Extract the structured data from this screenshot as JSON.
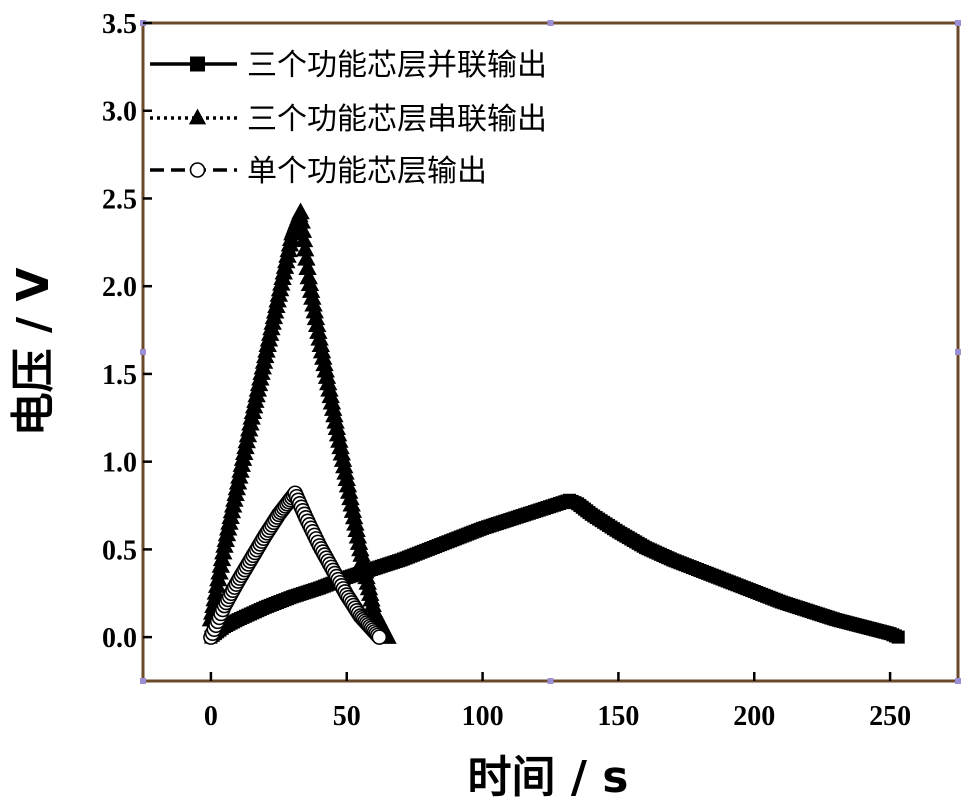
{
  "chart_data": {
    "type": "line",
    "xlabel": "时间 / s",
    "ylabel": "电压 / V",
    "xlim": [
      -25,
      275
    ],
    "ylim": [
      -0.25,
      3.5
    ],
    "x_ticks": [
      0,
      50,
      100,
      150,
      200,
      250
    ],
    "y_ticks": [
      0.0,
      0.5,
      1.0,
      1.5,
      2.0,
      2.5,
      3.0,
      3.5
    ],
    "x_tick_labels": [
      "0",
      "50",
      "100",
      "150",
      "200",
      "250"
    ],
    "y_tick_labels": [
      "0.0",
      "0.5",
      "1.0",
      "1.5",
      "2.0",
      "2.5",
      "3.0",
      "3.5"
    ],
    "grid": false,
    "legend_position": "top-left",
    "series": [
      {
        "name": "三个功能芯层并联输出",
        "marker": "square",
        "line_style": "solid",
        "color": "#000000",
        "x": [
          0,
          5,
          10,
          20,
          30,
          40,
          50,
          60,
          70,
          80,
          90,
          100,
          110,
          120,
          132,
          135,
          140,
          150,
          160,
          170,
          180,
          190,
          200,
          210,
          220,
          230,
          240,
          250,
          253
        ],
        "y": [
          0.0,
          0.06,
          0.1,
          0.17,
          0.23,
          0.28,
          0.34,
          0.39,
          0.44,
          0.5,
          0.56,
          0.62,
          0.67,
          0.72,
          0.78,
          0.76,
          0.7,
          0.6,
          0.51,
          0.44,
          0.38,
          0.32,
          0.26,
          0.2,
          0.15,
          0.1,
          0.06,
          0.02,
          0.0
        ]
      },
      {
        "name": "三个功能芯层串联输出",
        "marker": "triangle",
        "line_style": "dotted",
        "color": "#000000",
        "x": [
          0,
          5,
          10,
          15,
          20,
          25,
          30,
          33,
          36,
          40,
          45,
          50,
          55,
          60,
          65
        ],
        "y": [
          0.1,
          0.52,
          0.88,
          1.25,
          1.6,
          1.95,
          2.3,
          2.42,
          2.05,
          1.7,
          1.3,
          0.9,
          0.5,
          0.15,
          0.0
        ]
      },
      {
        "name": "单个功能芯层输出",
        "marker": "circle",
        "line_style": "dashed",
        "color": "#000000",
        "x": [
          0,
          5,
          10,
          15,
          20,
          25,
          31,
          35,
          40,
          45,
          50,
          55,
          62
        ],
        "y": [
          0.0,
          0.18,
          0.32,
          0.45,
          0.58,
          0.7,
          0.82,
          0.68,
          0.52,
          0.38,
          0.24,
          0.12,
          0.0
        ]
      }
    ]
  }
}
